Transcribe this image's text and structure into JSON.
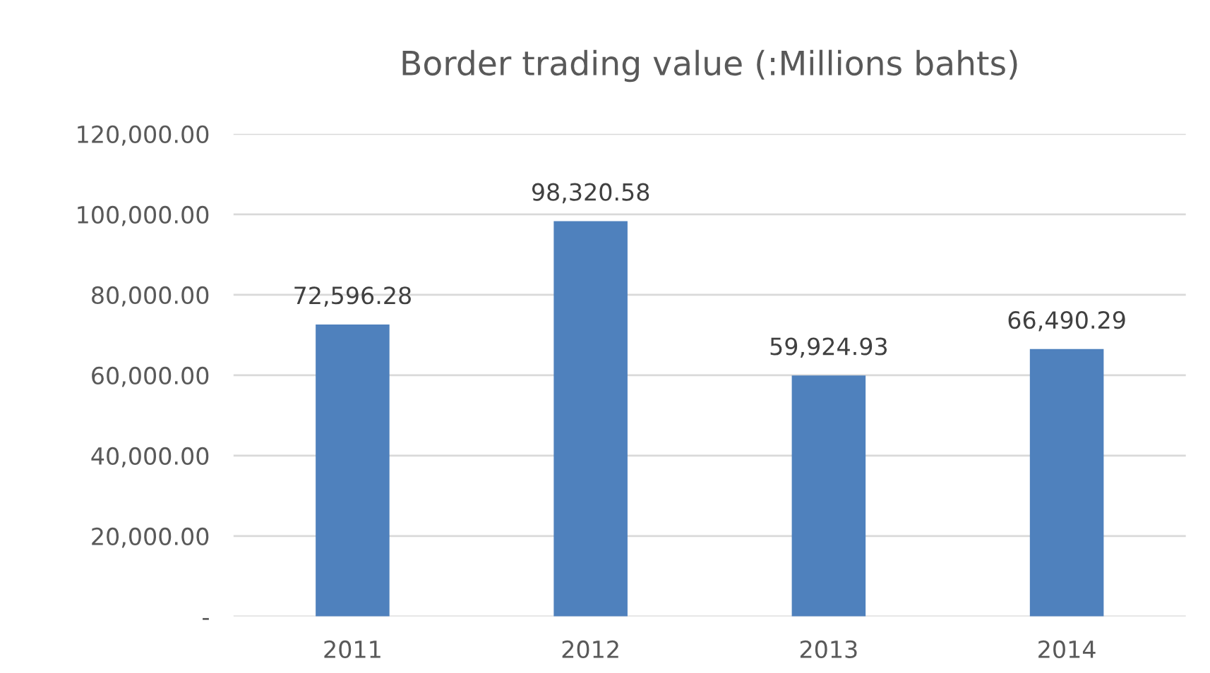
{
  "chart_data": {
    "type": "bar",
    "title": "Border trading value (:Millions bahts)",
    "categories": [
      "2011",
      "2012",
      "2013",
      "2014"
    ],
    "values": [
      72596.28,
      98320.58,
      59924.93,
      66490.29
    ],
    "value_labels": [
      "72,596.28",
      "98,320.58",
      "59,924.93",
      "66,490.29"
    ],
    "color": "#4f81bd",
    "ylim": [
      0,
      120000
    ],
    "yticks": [
      {
        "value": 0,
        "label": "-"
      },
      {
        "value": 20000,
        "label": "20,000.00"
      },
      {
        "value": 40000,
        "label": "40,000.00"
      },
      {
        "value": 60000,
        "label": "60,000.00"
      },
      {
        "value": 80000,
        "label": "80,000.00"
      },
      {
        "value": 100000,
        "label": "100,000.00"
      },
      {
        "value": 120000,
        "label": "120,000.00"
      }
    ],
    "grid": "y"
  }
}
